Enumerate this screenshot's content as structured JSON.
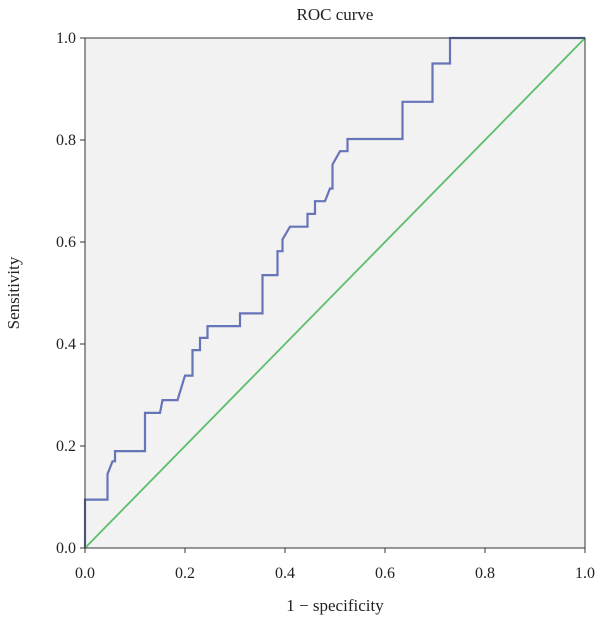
{
  "chart_data": {
    "type": "line",
    "title": "ROC curve",
    "xlabel": "1 − specificity",
    "ylabel": "Sensitivity",
    "xlim": [
      0,
      1
    ],
    "ylim": [
      0,
      1
    ],
    "x_ticks": [
      "0.0",
      "0.2",
      "0.4",
      "0.6",
      "0.8",
      "1.0"
    ],
    "y_ticks": [
      "0.0",
      "0.2",
      "0.4",
      "0.6",
      "0.8",
      "1.0"
    ],
    "grid": false,
    "colors": {
      "plot_background": "#f2f2f2",
      "roc_line": "#6674b8",
      "reference_line": "#5cbe6a",
      "frame": "#333333"
    },
    "series": [
      {
        "kind": "roc",
        "points": [
          [
            0.0,
            0.0
          ],
          [
            0.0,
            0.095
          ],
          [
            0.045,
            0.095
          ],
          [
            0.045,
            0.145
          ],
          [
            0.055,
            0.17
          ],
          [
            0.06,
            0.17
          ],
          [
            0.06,
            0.19
          ],
          [
            0.12,
            0.19
          ],
          [
            0.12,
            0.265
          ],
          [
            0.15,
            0.265
          ],
          [
            0.155,
            0.29
          ],
          [
            0.185,
            0.29
          ],
          [
            0.2,
            0.338
          ],
          [
            0.215,
            0.338
          ],
          [
            0.215,
            0.388
          ],
          [
            0.23,
            0.388
          ],
          [
            0.23,
            0.412
          ],
          [
            0.245,
            0.412
          ],
          [
            0.245,
            0.435
          ],
          [
            0.31,
            0.435
          ],
          [
            0.31,
            0.46
          ],
          [
            0.355,
            0.46
          ],
          [
            0.355,
            0.535
          ],
          [
            0.385,
            0.535
          ],
          [
            0.385,
            0.582
          ],
          [
            0.395,
            0.582
          ],
          [
            0.395,
            0.605
          ],
          [
            0.41,
            0.63
          ],
          [
            0.445,
            0.63
          ],
          [
            0.445,
            0.655
          ],
          [
            0.46,
            0.655
          ],
          [
            0.46,
            0.68
          ],
          [
            0.48,
            0.68
          ],
          [
            0.49,
            0.705
          ],
          [
            0.495,
            0.705
          ],
          [
            0.495,
            0.752
          ],
          [
            0.51,
            0.778
          ],
          [
            0.525,
            0.778
          ],
          [
            0.525,
            0.802
          ],
          [
            0.635,
            0.802
          ],
          [
            0.635,
            0.875
          ],
          [
            0.695,
            0.875
          ],
          [
            0.695,
            0.95
          ],
          [
            0.73,
            0.95
          ],
          [
            0.73,
            1.0
          ],
          [
            1.0,
            1.0
          ]
        ]
      },
      {
        "kind": "reference",
        "points": [
          [
            0.0,
            0.0
          ],
          [
            1.0,
            1.0
          ]
        ]
      }
    ]
  }
}
